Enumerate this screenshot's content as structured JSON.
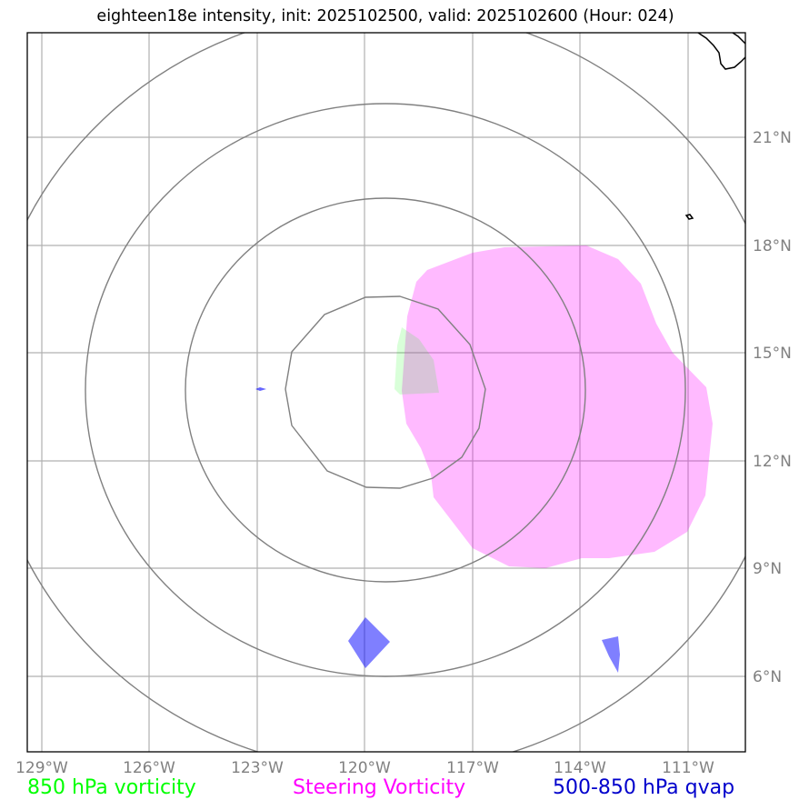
{
  "title": "eighteen18e intensity, init: 2025102500, valid: 2025102600 (Hour: 024)",
  "map": {
    "lon_ticks": [
      "129°W",
      "126°W",
      "123°W",
      "120°W",
      "117°W",
      "114°W",
      "111°W"
    ],
    "lat_ticks": [
      "21°N",
      "18°N",
      "15°N",
      "12°N",
      "9°N",
      "6°N"
    ],
    "lon_range": [
      -129.4,
      -109.4
    ],
    "lat_range": [
      4.0,
      24.0
    ],
    "colors": {
      "vorticity_850": "#00ff00",
      "steering_vorticity": "#ff00ff",
      "qvap_500_850": "#0000ff",
      "grid": "#b0b0b0",
      "range_rings": "#808080",
      "coastline": "#000000"
    }
  },
  "legend": {
    "vorticity_850": "850 hPa vorticity",
    "steering_vorticity": "Steering Vorticity",
    "qvap_500_850": "500-850 hPa qvap"
  }
}
